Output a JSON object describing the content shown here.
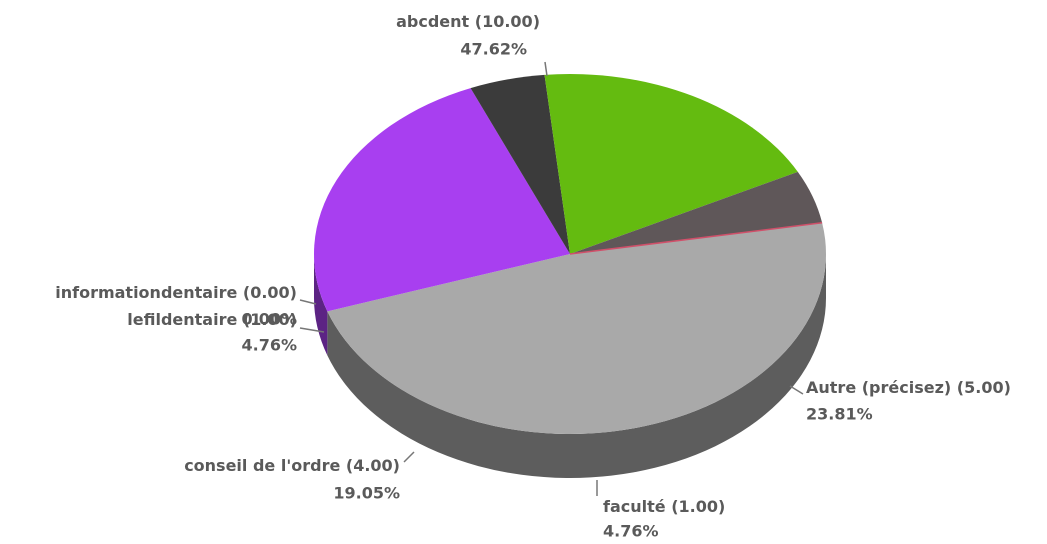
{
  "chart_data": {
    "type": "pie3d",
    "categories": [
      "abcdent",
      "Autre (précisez)",
      "faculté",
      "conseil de l'ordre",
      "lefildentaire",
      "informationdentaire"
    ],
    "values": [
      10,
      5,
      1,
      4,
      1,
      0
    ],
    "value_labels": [
      "(10.00)",
      "(5.00)",
      "(1.00)",
      "(4.00)",
      "(1.00)",
      "(0.00)"
    ],
    "percent_labels": [
      "47.62%",
      "23.81%",
      "4.76%",
      "19.05%",
      "4.76%",
      "0.00%"
    ],
    "colors": [
      "#a9a9a9",
      "#a83ff0",
      "#3b3b3b",
      "#64bb10",
      "#5f5759",
      "#d0506a"
    ]
  }
}
